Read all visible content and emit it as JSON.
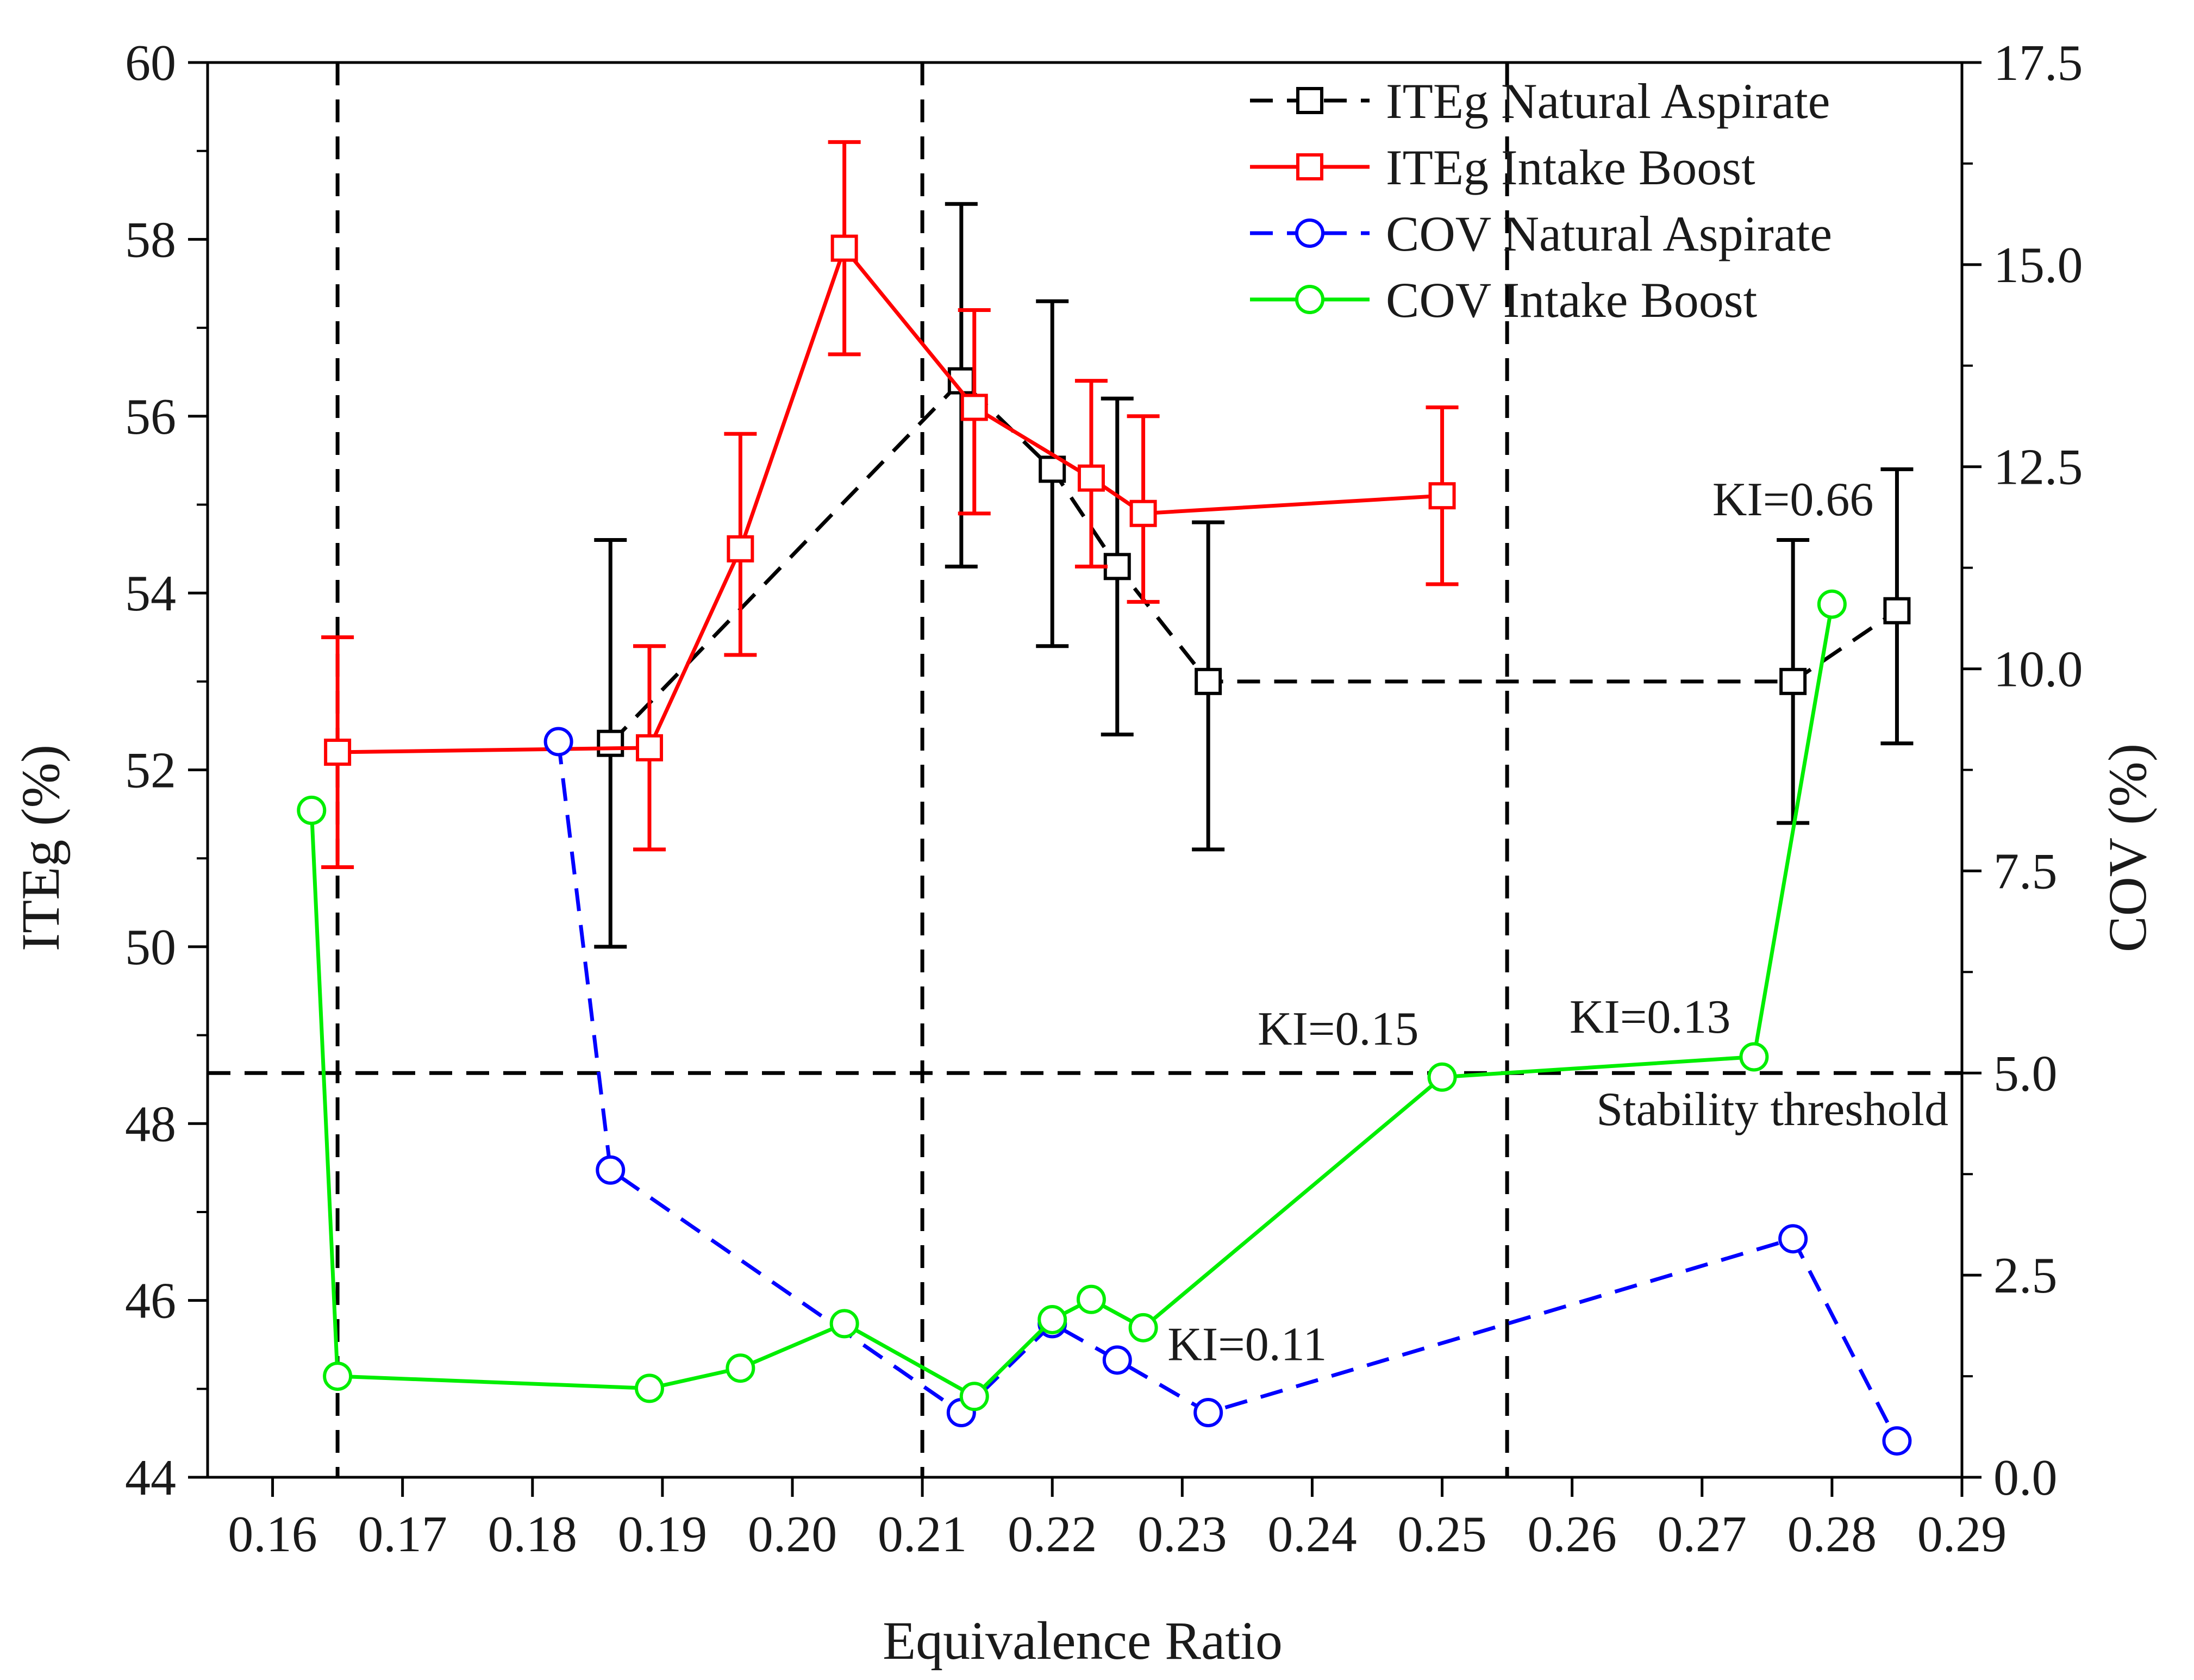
{
  "chart_data": {
    "type": "line",
    "xlabel": "Equivalence Ratio",
    "ylabel_left": "ITEg (%)",
    "ylabel_right": "COV (%)",
    "xlim": [
      0.155,
      0.29
    ],
    "ylim_left": [
      44,
      60
    ],
    "ylim_right": [
      0,
      17.5
    ],
    "x_ticks": [
      0.16,
      0.17,
      0.18,
      0.19,
      0.2,
      0.21,
      0.22,
      0.23,
      0.24,
      0.25,
      0.26,
      0.27,
      0.28,
      0.29
    ],
    "x_tick_labels": [
      "0.16",
      "0.17",
      "0.18",
      "0.19",
      "0.20",
      "0.21",
      "0.22",
      "0.23",
      "0.24",
      "0.25",
      "0.26",
      "0.27",
      "0.28",
      "0.29"
    ],
    "y_left_ticks": [
      44,
      46,
      48,
      50,
      52,
      54,
      56,
      58,
      60
    ],
    "y_left_tick_labels": [
      "44",
      "46",
      "48",
      "50",
      "52",
      "54",
      "56",
      "58",
      "60"
    ],
    "y_right_ticks": [
      0,
      2.5,
      5,
      7.5,
      10,
      12.5,
      15,
      17.5
    ],
    "y_right_tick_labels": [
      "0.0",
      "2.5",
      "5.0",
      "7.5",
      "10.0",
      "12.5",
      "15.0",
      "17.5"
    ],
    "series": [
      {
        "name": "ITEg Natural Aspirate",
        "axis": "left",
        "color": "#000000",
        "dash": true,
        "marker": "square",
        "x": [
          0.186,
          0.213,
          0.22,
          0.225,
          0.232,
          0.277,
          0.285
        ],
        "y": [
          52.3,
          56.4,
          55.4,
          54.3,
          53.0,
          53.0,
          53.8
        ],
        "err_low": [
          50.0,
          54.3,
          53.4,
          52.4,
          51.1,
          51.4,
          52.3
        ],
        "err_high": [
          54.6,
          58.4,
          57.3,
          56.2,
          54.8,
          54.6,
          55.4
        ]
      },
      {
        "name": "ITEg Intake Boost",
        "axis": "left",
        "color": "#ff0000",
        "dash": false,
        "marker": "square",
        "x": [
          0.165,
          0.189,
          0.196,
          0.204,
          0.214,
          0.223,
          0.227,
          0.25
        ],
        "y": [
          52.2,
          52.25,
          54.5,
          57.9,
          56.1,
          55.3,
          54.9,
          55.1
        ],
        "err_low": [
          50.9,
          51.1,
          53.3,
          56.7,
          54.9,
          54.3,
          53.9,
          54.1
        ],
        "err_high": [
          53.5,
          53.4,
          55.8,
          59.1,
          57.2,
          56.4,
          56.0,
          56.1
        ]
      },
      {
        "name": "COV Natural Aspirate",
        "axis": "right",
        "color": "#0000ff",
        "dash": true,
        "marker": "circle",
        "x": [
          0.182,
          0.186,
          0.213,
          0.22,
          0.225,
          0.232,
          0.277,
          0.285
        ],
        "y": [
          9.1,
          3.8,
          0.8,
          1.9,
          1.45,
          0.8,
          2.95,
          0.45
        ]
      },
      {
        "name": "COV Intake Boost",
        "axis": "right",
        "color": "#00ee00",
        "dash": false,
        "marker": "circle",
        "x": [
          0.163,
          0.165,
          0.189,
          0.196,
          0.204,
          0.214,
          0.22,
          0.223,
          0.227,
          0.25,
          0.274,
          0.28
        ],
        "y": [
          8.25,
          1.25,
          1.1,
          1.35,
          1.9,
          1.0,
          1.95,
          2.2,
          1.85,
          4.95,
          5.2,
          10.8
        ]
      }
    ],
    "reference_lines": {
      "vertical_x": [
        0.165,
        0.21,
        0.255
      ],
      "stability_threshold_cov": 5.0,
      "stability_threshold_label": "Stability threshold"
    },
    "annotations": [
      {
        "text": "KI=0.66",
        "x": 0.277,
        "y_right": 11.9
      },
      {
        "text": "KI=0.15",
        "x": 0.242,
        "y_right": 5.35
      },
      {
        "text": "KI=0.13",
        "x": 0.266,
        "y_right": 5.5
      },
      {
        "text": "KI=0.11",
        "x": 0.235,
        "y_right": 1.45
      }
    ],
    "legend": {
      "position": "top-right",
      "entries": [
        "ITEg Natural Aspirate",
        "ITEg Intake Boost",
        "COV Natural Aspirate",
        "COV Intake Boost"
      ]
    }
  }
}
